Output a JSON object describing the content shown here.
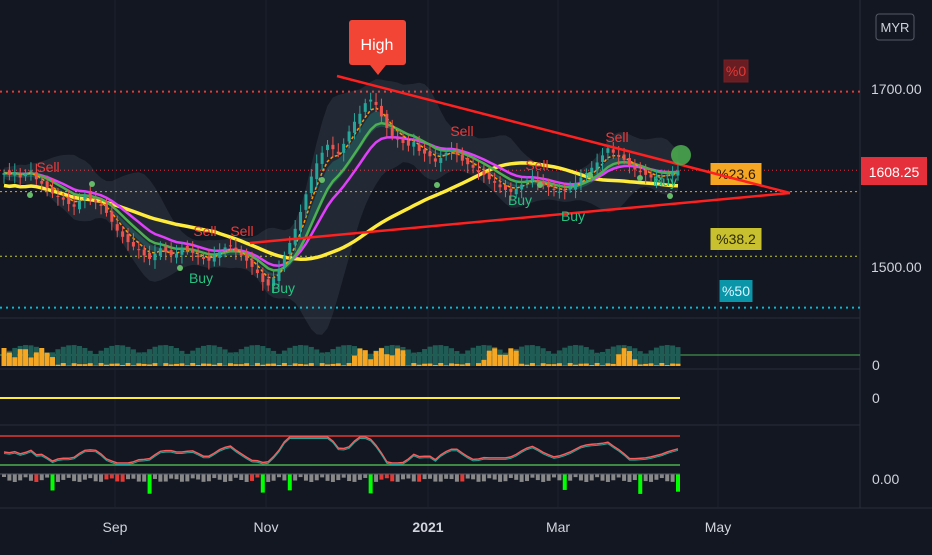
{
  "currency_button": "MYR",
  "colors": {
    "background": "#131722",
    "up": "#26a69a",
    "down": "#ef5350",
    "ema_orange": "#ff9800",
    "ema_green": "#4caf50",
    "ema_magenta": "#e040fb",
    "sma_yellow": "#ffeb3b",
    "trendline": "#ff2020",
    "fib_red": "#e53935",
    "fib_orange": "#ff9800",
    "fib_yellow": "#c0ca33",
    "fib_cyan": "#00bcd4",
    "volume_teal": "#1f5c55",
    "volume_orange": "#f5a623",
    "rsi_line": "#ff5a5a",
    "rsi_teal": "#26a69a",
    "hist_green": "#00ff00",
    "hist_red": "#e53935",
    "hist_gray": "#888888"
  },
  "chart_data": {
    "type": "candlestick",
    "main_pane": {
      "ylim": [
        1433,
        1745
      ],
      "price_ticks": [
        1700.0,
        1500.0
      ],
      "last_price": 1608.25,
      "fib_levels": [
        {
          "label": "%0",
          "price": 1697,
          "style": "dotted-red"
        },
        {
          "label": "%23.6",
          "price": 1584,
          "style": "dotted-orange"
        },
        {
          "label": "%38.2",
          "price": 1511,
          "style": "dotted-yellow"
        },
        {
          "label": "%50",
          "price": 1453,
          "style": "dotted-cyan"
        }
      ],
      "markers": {
        "high_label": "High",
        "sell_labels": [
          "Sell",
          "Sell",
          "Sell",
          "Sell",
          "Sell",
          "Sell"
        ],
        "buy_labels": [
          "Buy",
          "Buy",
          "Buy",
          "Buy",
          "Buy"
        ]
      },
      "closes": [
        1605,
        1603,
        1606,
        1600,
        1604,
        1608,
        1598,
        1593,
        1588,
        1582,
        1578,
        1575,
        1570,
        1567,
        1574,
        1580,
        1576,
        1572,
        1568,
        1560,
        1550,
        1540,
        1533,
        1527,
        1522,
        1518,
        1512,
        1508,
        1514,
        1520,
        1516,
        1512,
        1514,
        1520,
        1518,
        1515,
        1510,
        1508,
        1506,
        1512,
        1517,
        1521,
        1523,
        1517,
        1512,
        1506,
        1499,
        1492,
        1482,
        1478,
        1486,
        1497,
        1511,
        1526,
        1542,
        1561,
        1581,
        1601,
        1616,
        1628,
        1637,
        1632,
        1627,
        1638,
        1652,
        1663,
        1672,
        1684,
        1688,
        1682,
        1669,
        1656,
        1647,
        1643,
        1639,
        1636,
        1640,
        1630,
        1627,
        1624,
        1618,
        1622,
        1628,
        1632,
        1626,
        1619,
        1615,
        1611,
        1606,
        1603,
        1598,
        1594,
        1589,
        1586,
        1584,
        1587,
        1592,
        1597,
        1600,
        1595,
        1591,
        1589,
        1586,
        1584,
        1585,
        1589,
        1594,
        1600,
        1605,
        1611,
        1617,
        1625,
        1633,
        1628,
        1624,
        1620,
        1614,
        1609,
        1606,
        1603,
        1600,
        1599,
        1600,
        1603,
        1605,
        1608
      ]
    },
    "indicators": [
      {
        "name": "volume",
        "zero_label": "0"
      },
      {
        "name": "oscillator_flat",
        "zero_label": "0"
      },
      {
        "name": "rsi_histogram",
        "zero_label": "0.00"
      }
    ],
    "x_axis": {
      "tick_labels": [
        "Sep",
        "Nov",
        "2021",
        "Mar",
        "May"
      ],
      "bold_ticks": [
        "2021"
      ]
    }
  }
}
